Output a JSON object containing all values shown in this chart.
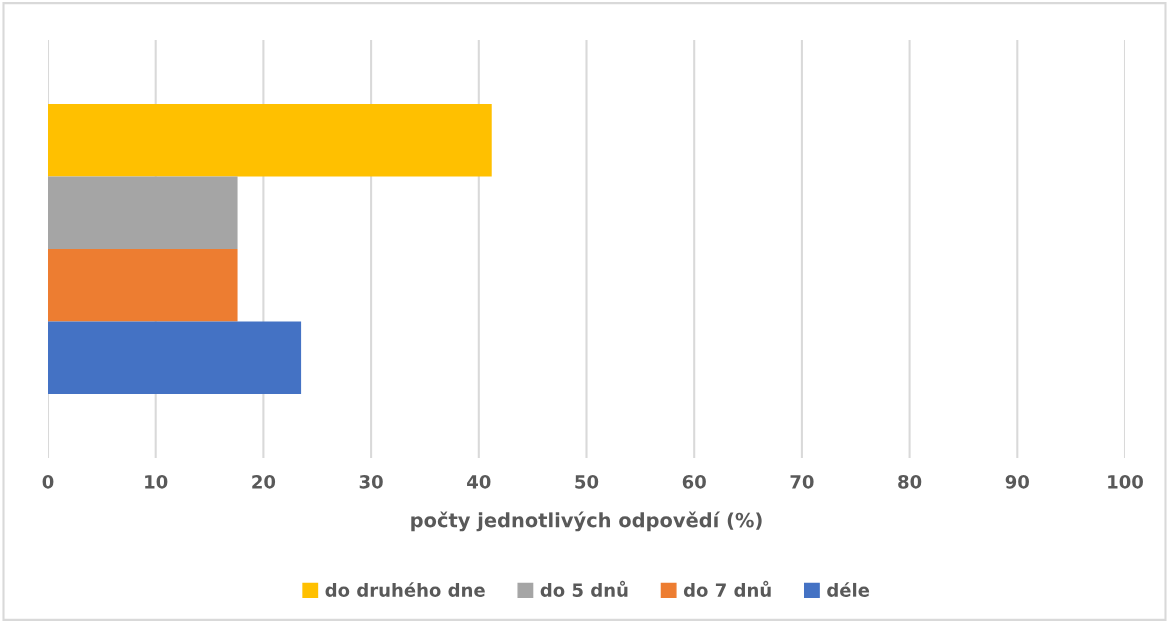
{
  "chart_data": {
    "type": "bar",
    "orientation": "horizontal",
    "categories": [
      null
    ],
    "series": [
      {
        "name": "do druhého dne",
        "color": "#ffc000",
        "values": [
          41.2
        ]
      },
      {
        "name": "do 5 dnů",
        "color": "#a5a5a5",
        "values": [
          17.6
        ]
      },
      {
        "name": "do 7 dnů",
        "color": "#ed7d31",
        "values": [
          17.6
        ]
      },
      {
        "name": "déle",
        "color": "#4472c4",
        "values": [
          23.5
        ]
      }
    ],
    "xlabel": "počty jednotlivých odpovědí (%)",
    "xlim": [
      0,
      100
    ],
    "xticks": [
      0,
      10,
      20,
      30,
      40,
      50,
      60,
      70,
      80,
      90,
      100
    ],
    "grid": "x",
    "legend": "bottom",
    "tick_labels": "x"
  }
}
